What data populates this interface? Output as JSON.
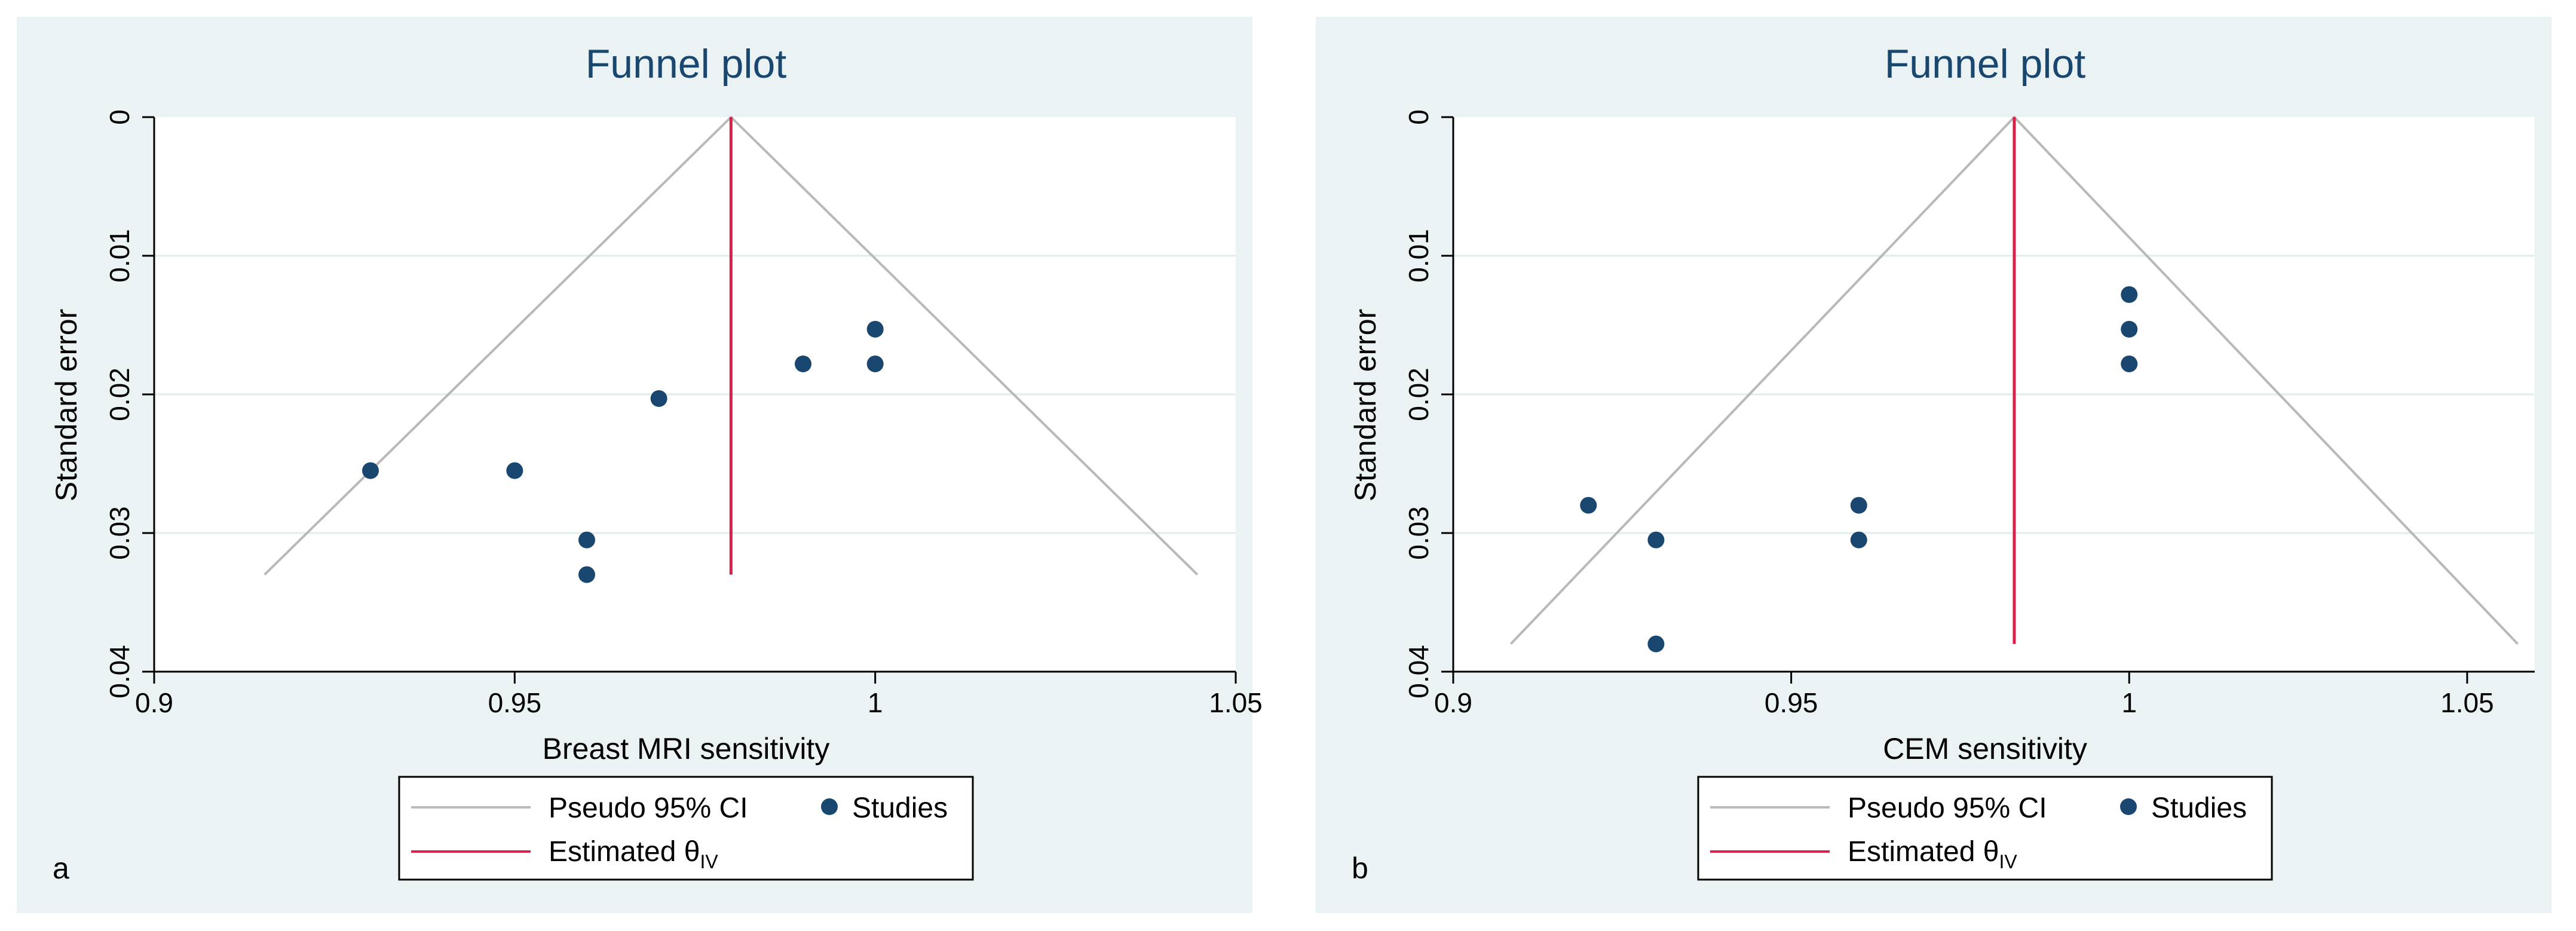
{
  "colors": {
    "panel_bg": "#eaf2f3",
    "plot_bg": "#ffffff",
    "grid": "#e1ecee",
    "ci_line": "#b9b9b9",
    "estimate_line": "#d8204a",
    "study_marker": "#1a476f",
    "title": "#1a476f"
  },
  "chart_data": [
    {
      "type": "scatter",
      "panel_label": "a",
      "title": "Funnel plot",
      "xlabel": "Breast MRI sensitivity",
      "ylabel": "Standard error",
      "xlim": [
        0.9,
        1.05
      ],
      "ylim": [
        0,
        0.04
      ],
      "y_reversed": true,
      "xticks": [
        0.9,
        0.95,
        1,
        1.05
      ],
      "xtick_labels": [
        "0.9",
        "0.95",
        "1",
        "1.05"
      ],
      "yticks": [
        0,
        0.01,
        0.02,
        0.03,
        0.04
      ],
      "ytick_labels": [
        "0",
        "0.01",
        "0.02",
        "0.03",
        "0.04"
      ],
      "estimate": 0.98,
      "max_se": 0.033,
      "studies": [
        {
          "x": 0.93,
          "y": 0.0255
        },
        {
          "x": 0.95,
          "y": 0.0255
        },
        {
          "x": 0.96,
          "y": 0.0305
        },
        {
          "x": 0.96,
          "y": 0.033
        },
        {
          "x": 0.97,
          "y": 0.0203
        },
        {
          "x": 0.99,
          "y": 0.0178
        },
        {
          "x": 1.0,
          "y": 0.0153
        },
        {
          "x": 1.0,
          "y": 0.0178
        }
      ],
      "legend": {
        "ci_label": "Pseudo 95% CI",
        "studies_label": "Studies",
        "estimate_label": "Estimated θ",
        "estimate_sub": "IV"
      }
    },
    {
      "type": "scatter",
      "panel_label": "b",
      "title": "Funnel plot",
      "xlabel": "CEM sensitivity",
      "ylabel": "Standard error",
      "xlim": [
        0.9,
        1.06
      ],
      "ylim": [
        0,
        0.04
      ],
      "y_reversed": true,
      "xticks": [
        0.9,
        0.95,
        1,
        1.05
      ],
      "xtick_labels": [
        "0.9",
        "0.95",
        "1",
        "1.05"
      ],
      "yticks": [
        0,
        0.01,
        0.02,
        0.03,
        0.04
      ],
      "ytick_labels": [
        "0",
        "0.01",
        "0.02",
        "0.03",
        "0.04"
      ],
      "estimate": 0.983,
      "max_se": 0.038,
      "studies": [
        {
          "x": 0.92,
          "y": 0.028
        },
        {
          "x": 0.93,
          "y": 0.0305
        },
        {
          "x": 0.93,
          "y": 0.038
        },
        {
          "x": 0.96,
          "y": 0.028
        },
        {
          "x": 0.96,
          "y": 0.0305
        },
        {
          "x": 1.0,
          "y": 0.0128
        },
        {
          "x": 1.0,
          "y": 0.0153
        },
        {
          "x": 1.0,
          "y": 0.0178
        }
      ],
      "legend": {
        "ci_label": "Pseudo 95% CI",
        "studies_label": "Studies",
        "estimate_label": "Estimated θ",
        "estimate_sub": "IV"
      }
    }
  ]
}
